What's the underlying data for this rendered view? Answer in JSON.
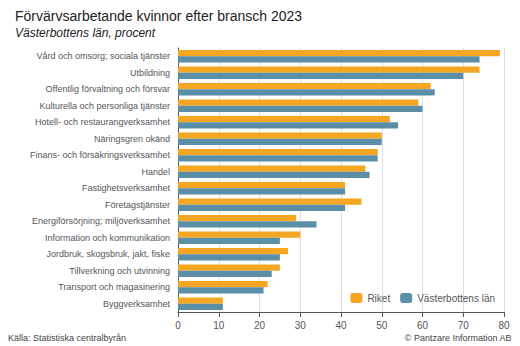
{
  "chart_data": {
    "type": "bar",
    "orientation": "horizontal",
    "title": "Förvärvsarbetande kvinnor efter bransch 2023",
    "subtitle": "Västerbottens län, procent",
    "annotations": [
      "Källa: Statistiska centralbyrån",
      "© Pantzare Information AB"
    ],
    "categories": [
      "Vård och omsorg; sociala tjänster",
      "Utbildning",
      "Offentlig förvaltning och försvar",
      "Kulturella och personliga tjänster",
      "Hotell- och restaurangverksamhet",
      "Näringsgren okänd",
      "Finans- och försäkringsverksamhet",
      "Handel",
      "Fastighetsverksamhet",
      "Företagstjänster",
      "Energiförsörjning; miljöverksamhet",
      "Information och kommunikation",
      "Jordbruk, skogsbruk, jakt, fiske",
      "Tillverkning och utvinning",
      "Transport och magasinering",
      "Byggverksamhet"
    ],
    "series": [
      {
        "name": "Riket",
        "color": "#f5a623",
        "values": [
          79,
          74,
          62,
          59,
          52,
          50,
          49,
          46,
          41,
          45,
          29,
          30,
          27,
          25,
          22,
          11
        ]
      },
      {
        "name": "Västerbottens län",
        "color": "#5b8fa8",
        "values": [
          74,
          70,
          63,
          60,
          54,
          50,
          49,
          47,
          41,
          41,
          34,
          25,
          25,
          23,
          21,
          11
        ]
      }
    ],
    "xlim": [
      0,
      80
    ],
    "xticks": [
      0,
      10,
      20,
      30,
      40,
      50,
      60,
      70,
      80
    ],
    "grid": true,
    "legend": "lower right"
  }
}
